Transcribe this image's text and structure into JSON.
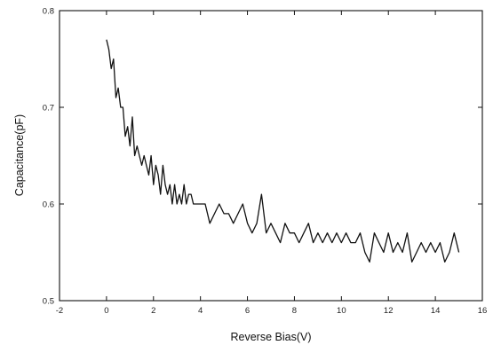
{
  "chart_data": {
    "type": "line",
    "title": "",
    "xlabel": "Reverse Bias(V)",
    "ylabel": "Capacitance(pF)",
    "xlim": [
      -2,
      16
    ],
    "ylim": [
      0.5,
      0.8
    ],
    "x_ticks": [
      "-2",
      "0",
      "2",
      "4",
      "6",
      "8",
      "10",
      "12",
      "14",
      "16"
    ],
    "y_ticks": [
      "0.5",
      "0.6",
      "0.7",
      "0.8"
    ],
    "grid": false,
    "line_color": "#111111",
    "series": [
      {
        "x": [
          0.0,
          0.1,
          0.2,
          0.3,
          0.4,
          0.5,
          0.6,
          0.7,
          0.8,
          0.9,
          1.0,
          1.1,
          1.2,
          1.3,
          1.4,
          1.5,
          1.6,
          1.7,
          1.8,
          1.9,
          2.0,
          2.1,
          2.2,
          2.3,
          2.4,
          2.5,
          2.6,
          2.7,
          2.8,
          2.9,
          3.0,
          3.1,
          3.2,
          3.3,
          3.4,
          3.5,
          3.6,
          3.7,
          3.8,
          3.9,
          4.0,
          4.2,
          4.4,
          4.6,
          4.8,
          5.0,
          5.2,
          5.4,
          5.6,
          5.8,
          6.0,
          6.2,
          6.4,
          6.6,
          6.8,
          7.0,
          7.2,
          7.4,
          7.6,
          7.8,
          8.0,
          8.2,
          8.4,
          8.6,
          8.8,
          9.0,
          9.2,
          9.4,
          9.6,
          9.8,
          10.0,
          10.2,
          10.4,
          10.6,
          10.8,
          11.0,
          11.2,
          11.4,
          11.6,
          11.8,
          12.0,
          12.2,
          12.4,
          12.6,
          12.8,
          13.0,
          13.2,
          13.4,
          13.6,
          13.8,
          14.0,
          14.2,
          14.4,
          14.6,
          14.8,
          15.0
        ],
        "values": [
          0.77,
          0.76,
          0.74,
          0.75,
          0.71,
          0.72,
          0.7,
          0.7,
          0.67,
          0.68,
          0.66,
          0.69,
          0.65,
          0.66,
          0.65,
          0.64,
          0.65,
          0.64,
          0.63,
          0.65,
          0.62,
          0.64,
          0.63,
          0.61,
          0.64,
          0.62,
          0.61,
          0.62,
          0.6,
          0.62,
          0.6,
          0.61,
          0.6,
          0.62,
          0.6,
          0.61,
          0.61,
          0.6,
          0.6,
          0.6,
          0.6,
          0.6,
          0.58,
          0.59,
          0.6,
          0.59,
          0.59,
          0.58,
          0.59,
          0.6,
          0.58,
          0.57,
          0.58,
          0.61,
          0.57,
          0.58,
          0.57,
          0.56,
          0.58,
          0.57,
          0.57,
          0.56,
          0.57,
          0.58,
          0.56,
          0.57,
          0.56,
          0.57,
          0.56,
          0.57,
          0.56,
          0.57,
          0.56,
          0.56,
          0.57,
          0.55,
          0.54,
          0.57,
          0.56,
          0.55,
          0.57,
          0.55,
          0.56,
          0.55,
          0.57,
          0.54,
          0.55,
          0.56,
          0.55,
          0.56,
          0.55,
          0.56,
          0.54,
          0.55,
          0.57,
          0.55
        ]
      }
    ]
  }
}
